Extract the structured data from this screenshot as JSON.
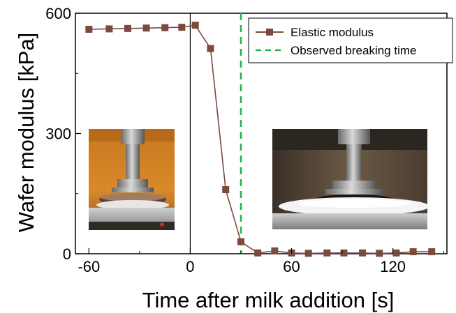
{
  "chart_data": {
    "type": "line",
    "xlabel": "Time after milk addition [s]",
    "ylabel": "Wafer modulus [kPa]",
    "xlim": [
      -68,
      152
    ],
    "ylim": [
      0,
      600
    ],
    "xticks": [
      -60,
      0,
      60,
      120
    ],
    "yticks": [
      0,
      300,
      600
    ],
    "grid": false,
    "legend_position": "top-right",
    "series": [
      {
        "name": "Elastic modulus",
        "color": "#7b4a3c",
        "marker": "square",
        "x": [
          -60,
          -48,
          -37,
          -26,
          -15,
          -5,
          3,
          12,
          21,
          30,
          40,
          50,
          60,
          70,
          81,
          91,
          102,
          112,
          122,
          132,
          143
        ],
        "y": [
          560,
          561,
          562,
          563,
          564,
          565,
          570,
          512,
          160,
          30,
          2,
          7,
          2,
          1,
          2,
          2,
          2,
          1,
          2,
          5,
          5
        ]
      }
    ],
    "vlines": [
      {
        "name": "Observed breaking time",
        "x": 30,
        "color": "#22b14c",
        "style": "dashed"
      }
    ],
    "insets": [
      {
        "name": "dry-wafer-photo-icon"
      },
      {
        "name": "wet-wafer-photo-icon"
      }
    ]
  }
}
